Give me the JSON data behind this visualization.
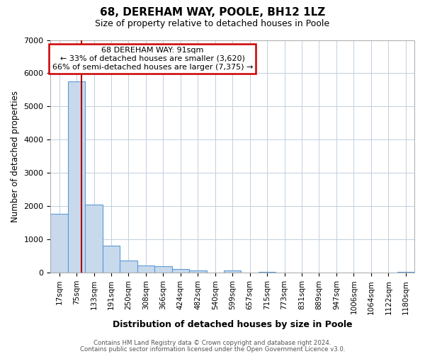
{
  "title": "68, DEREHAM WAY, POOLE, BH12 1LZ",
  "subtitle": "Size of property relative to detached houses in Poole",
  "xlabel": "Distribution of detached houses by size in Poole",
  "ylabel": "Number of detached properties",
  "bar_labels": [
    "17sqm",
    "75sqm",
    "133sqm",
    "191sqm",
    "250sqm",
    "308sqm",
    "366sqm",
    "424sqm",
    "482sqm",
    "540sqm",
    "599sqm",
    "657sqm",
    "715sqm",
    "773sqm",
    "831sqm",
    "889sqm",
    "947sqm",
    "1006sqm",
    "1064sqm",
    "1122sqm",
    "1180sqm"
  ],
  "bar_values": [
    1780,
    5750,
    2050,
    820,
    370,
    220,
    200,
    100,
    60,
    0,
    70,
    0,
    30,
    0,
    0,
    0,
    0,
    0,
    0,
    0,
    20
  ],
  "bar_color": "#c8d9ec",
  "bar_edge_color": "#5b9bd5",
  "vline_x": 1.3,
  "vline_color": "#aa0000",
  "annotation_title": "68 DEREHAM WAY: 91sqm",
  "annotation_line1": "← 33% of detached houses are smaller (3,620)",
  "annotation_line2": "66% of semi-detached houses are larger (7,375) →",
  "annotation_box_color": "#ffffff",
  "annotation_box_edge": "#cc0000",
  "ylim": [
    0,
    7000
  ],
  "yticks": [
    0,
    1000,
    2000,
    3000,
    4000,
    5000,
    6000,
    7000
  ],
  "footer1": "Contains HM Land Registry data © Crown copyright and database right 2024.",
  "footer2": "Contains public sector information licensed under the Open Government Licence v3.0.",
  "background_color": "#ffffff",
  "grid_color": "#c0cfe0",
  "title_fontsize": 11,
  "subtitle_fontsize": 9
}
